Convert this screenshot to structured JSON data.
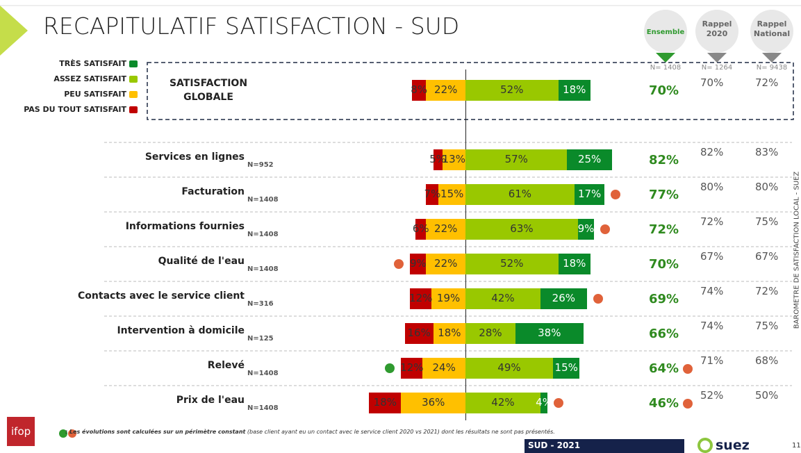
{
  "chart_data": {
    "type": "diverging-bar",
    "title": "RECAPITULATIF SATISFACTION - SUD",
    "categories": [
      "SATISFACTION GLOBALE",
      "Services en lignes",
      "Facturation",
      "Informations fournies",
      "Qualité de l'eau",
      "Contacts avec le service client",
      "Intervention à domicile",
      "Relevé",
      "Prix de l'eau"
    ],
    "n_labels": [
      null,
      "N=952",
      "N=1408",
      "N=1408",
      "N=1408",
      "N=316",
      "N=125",
      "N=1408",
      "N=1408"
    ],
    "series": [
      {
        "name": "TRÈS SATISFAIT",
        "color": "#0a8a2a",
        "values": [
          18,
          25,
          17,
          9,
          18,
          26,
          38,
          15,
          4
        ],
        "value_labels": [
          "18%",
          "25%",
          "17%",
          "9%",
          "18%",
          "26%",
          "38%",
          "15%",
          "4%"
        ]
      },
      {
        "name": "ASSEZ SATISFAIT",
        "color": "#99c800",
        "values": [
          52,
          57,
          61,
          63,
          52,
          42,
          28,
          49,
          42
        ],
        "value_labels": [
          "52%",
          "57%",
          "61%",
          "63%",
          "52%",
          "42%",
          "28%",
          "49%",
          "42%"
        ]
      },
      {
        "name": "PEU SATISFAIT",
        "color": "#ffc000",
        "values": [
          22,
          13,
          15,
          22,
          22,
          19,
          18,
          24,
          36
        ],
        "value_labels": [
          "22%",
          "13%",
          "15%",
          "22%",
          "22%",
          "19%",
          "18%",
          "24%",
          "36%"
        ]
      },
      {
        "name": "PAS DU TOUT SATISFAIT",
        "color": "#c00000",
        "values": [
          8,
          5,
          7,
          6,
          9,
          12,
          16,
          12,
          18
        ],
        "value_labels": [
          "8%",
          "5%",
          "7%",
          "6%",
          "9%",
          "12%",
          "16%",
          "12%",
          "18%"
        ]
      }
    ],
    "trends": [
      null,
      null,
      {
        "direction": "down",
        "side": "right"
      },
      {
        "direction": "down",
        "side": "right"
      },
      {
        "direction": "down",
        "side": "left"
      },
      {
        "direction": "down",
        "side": "right"
      },
      null,
      {
        "direction": "up",
        "side": "left"
      },
      {
        "direction": "down",
        "side": "right"
      }
    ],
    "columns": [
      {
        "name": "Ensemble",
        "n": "N= 1408",
        "values": [
          70,
          82,
          77,
          72,
          70,
          69,
          66,
          64,
          46
        ],
        "value_labels": [
          "70%",
          "82%",
          "77%",
          "72%",
          "70%",
          "69%",
          "66%",
          "64%",
          "46%"
        ],
        "trends": [
          null,
          null,
          null,
          null,
          null,
          null,
          null,
          "down",
          "down"
        ]
      },
      {
        "name": "Rappel 2020",
        "n": "N= 1264",
        "values": [
          70,
          82,
          80,
          72,
          67,
          74,
          74,
          71,
          52
        ],
        "value_labels": [
          "70%",
          "82%",
          "80%",
          "72%",
          "67%",
          "74%",
          "74%",
          "71%",
          "52%"
        ]
      },
      {
        "name": "Rappel National",
        "n": "N= 9438",
        "values": [
          72,
          83,
          80,
          75,
          67,
          72,
          75,
          68,
          50
        ],
        "value_labels": [
          "72%",
          "83%",
          "80%",
          "75%",
          "67%",
          "72%",
          "75%",
          "68%",
          "50%"
        ]
      }
    ],
    "footnote_bold": ": Les évolutions sont calculées sur un périmètre constant",
    "footnote": "(base client ayant eu un contact avec le service client 2020 vs 2021) dont les résultats ne sont pas présentés.",
    "side_text": "BAROMETRE DE SATISFACTION LOCAL - SUEZ",
    "footer_label": "SUD  - 2021",
    "page_number": "11",
    "logo_left": "ifop",
    "logo_right": "suez"
  }
}
